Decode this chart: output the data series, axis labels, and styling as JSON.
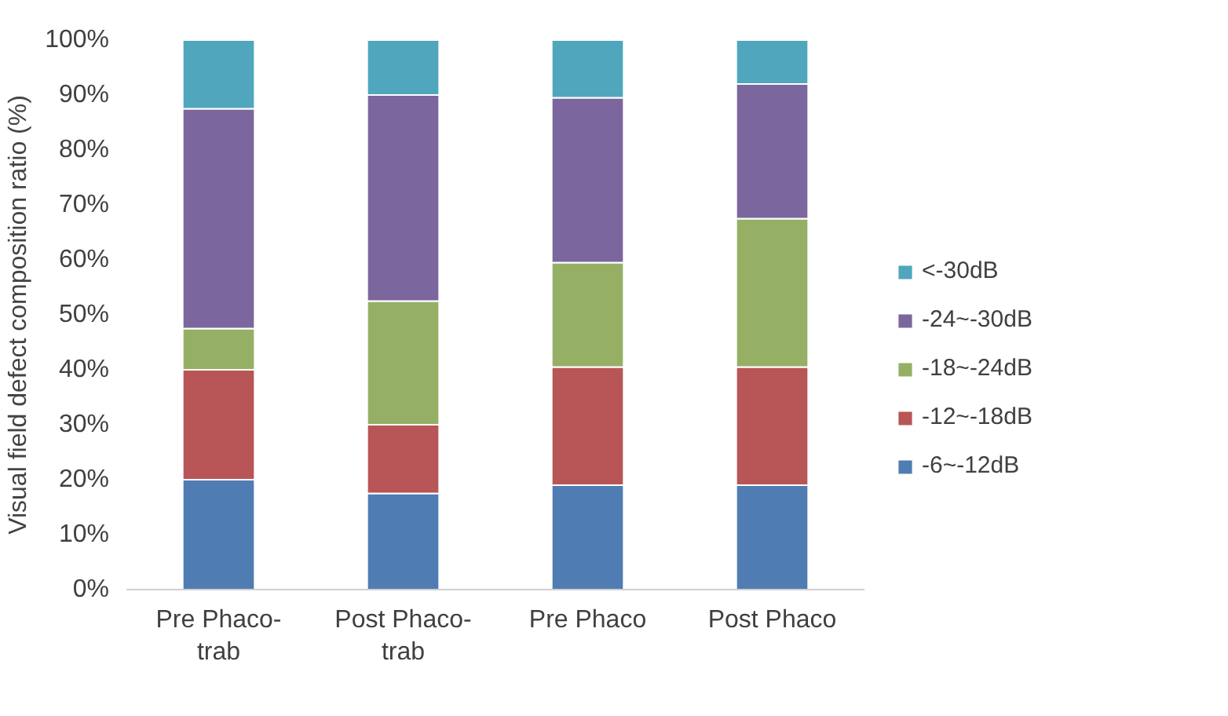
{
  "chart_data": {
    "type": "bar",
    "stacked": true,
    "ylabel": "Visual field defect composition ratio (%)",
    "categories": [
      "Pre Phaco-\ntrab",
      "Post Phaco-\ntrab",
      "Pre Phaco",
      "Post Phaco"
    ],
    "series": [
      {
        "name": "-6~-12dB",
        "color": "#4f7db3",
        "values": [
          20,
          17.5,
          19,
          19
        ]
      },
      {
        "name": "-12~-18dB",
        "color": "#b85557",
        "values": [
          20,
          12.5,
          21.5,
          21.5
        ]
      },
      {
        "name": "-18~-24dB",
        "color": "#95b065",
        "values": [
          7.5,
          22.5,
          19,
          27
        ]
      },
      {
        "name": "-24~-30dB",
        "color": "#7b679d",
        "values": [
          40,
          37.5,
          30,
          24.5
        ]
      },
      {
        "name": "<-30dB",
        "color": "#4fa6bd",
        "values": [
          12.5,
          10,
          10.5,
          8
        ]
      }
    ],
    "ylim": [
      0,
      100
    ],
    "yticks": [
      {
        "value": 0,
        "label": "0%"
      },
      {
        "value": 10,
        "label": "10%"
      },
      {
        "value": 20,
        "label": "20%"
      },
      {
        "value": 30,
        "label": "30%"
      },
      {
        "value": 40,
        "label": "40%"
      },
      {
        "value": 50,
        "label": "50%"
      },
      {
        "value": 60,
        "label": "60%"
      },
      {
        "value": 70,
        "label": "70%"
      },
      {
        "value": 80,
        "label": "80%"
      },
      {
        "value": 90,
        "label": "90%"
      },
      {
        "value": 100,
        "label": "100%"
      }
    ],
    "grid": false,
    "legend": "right"
  }
}
